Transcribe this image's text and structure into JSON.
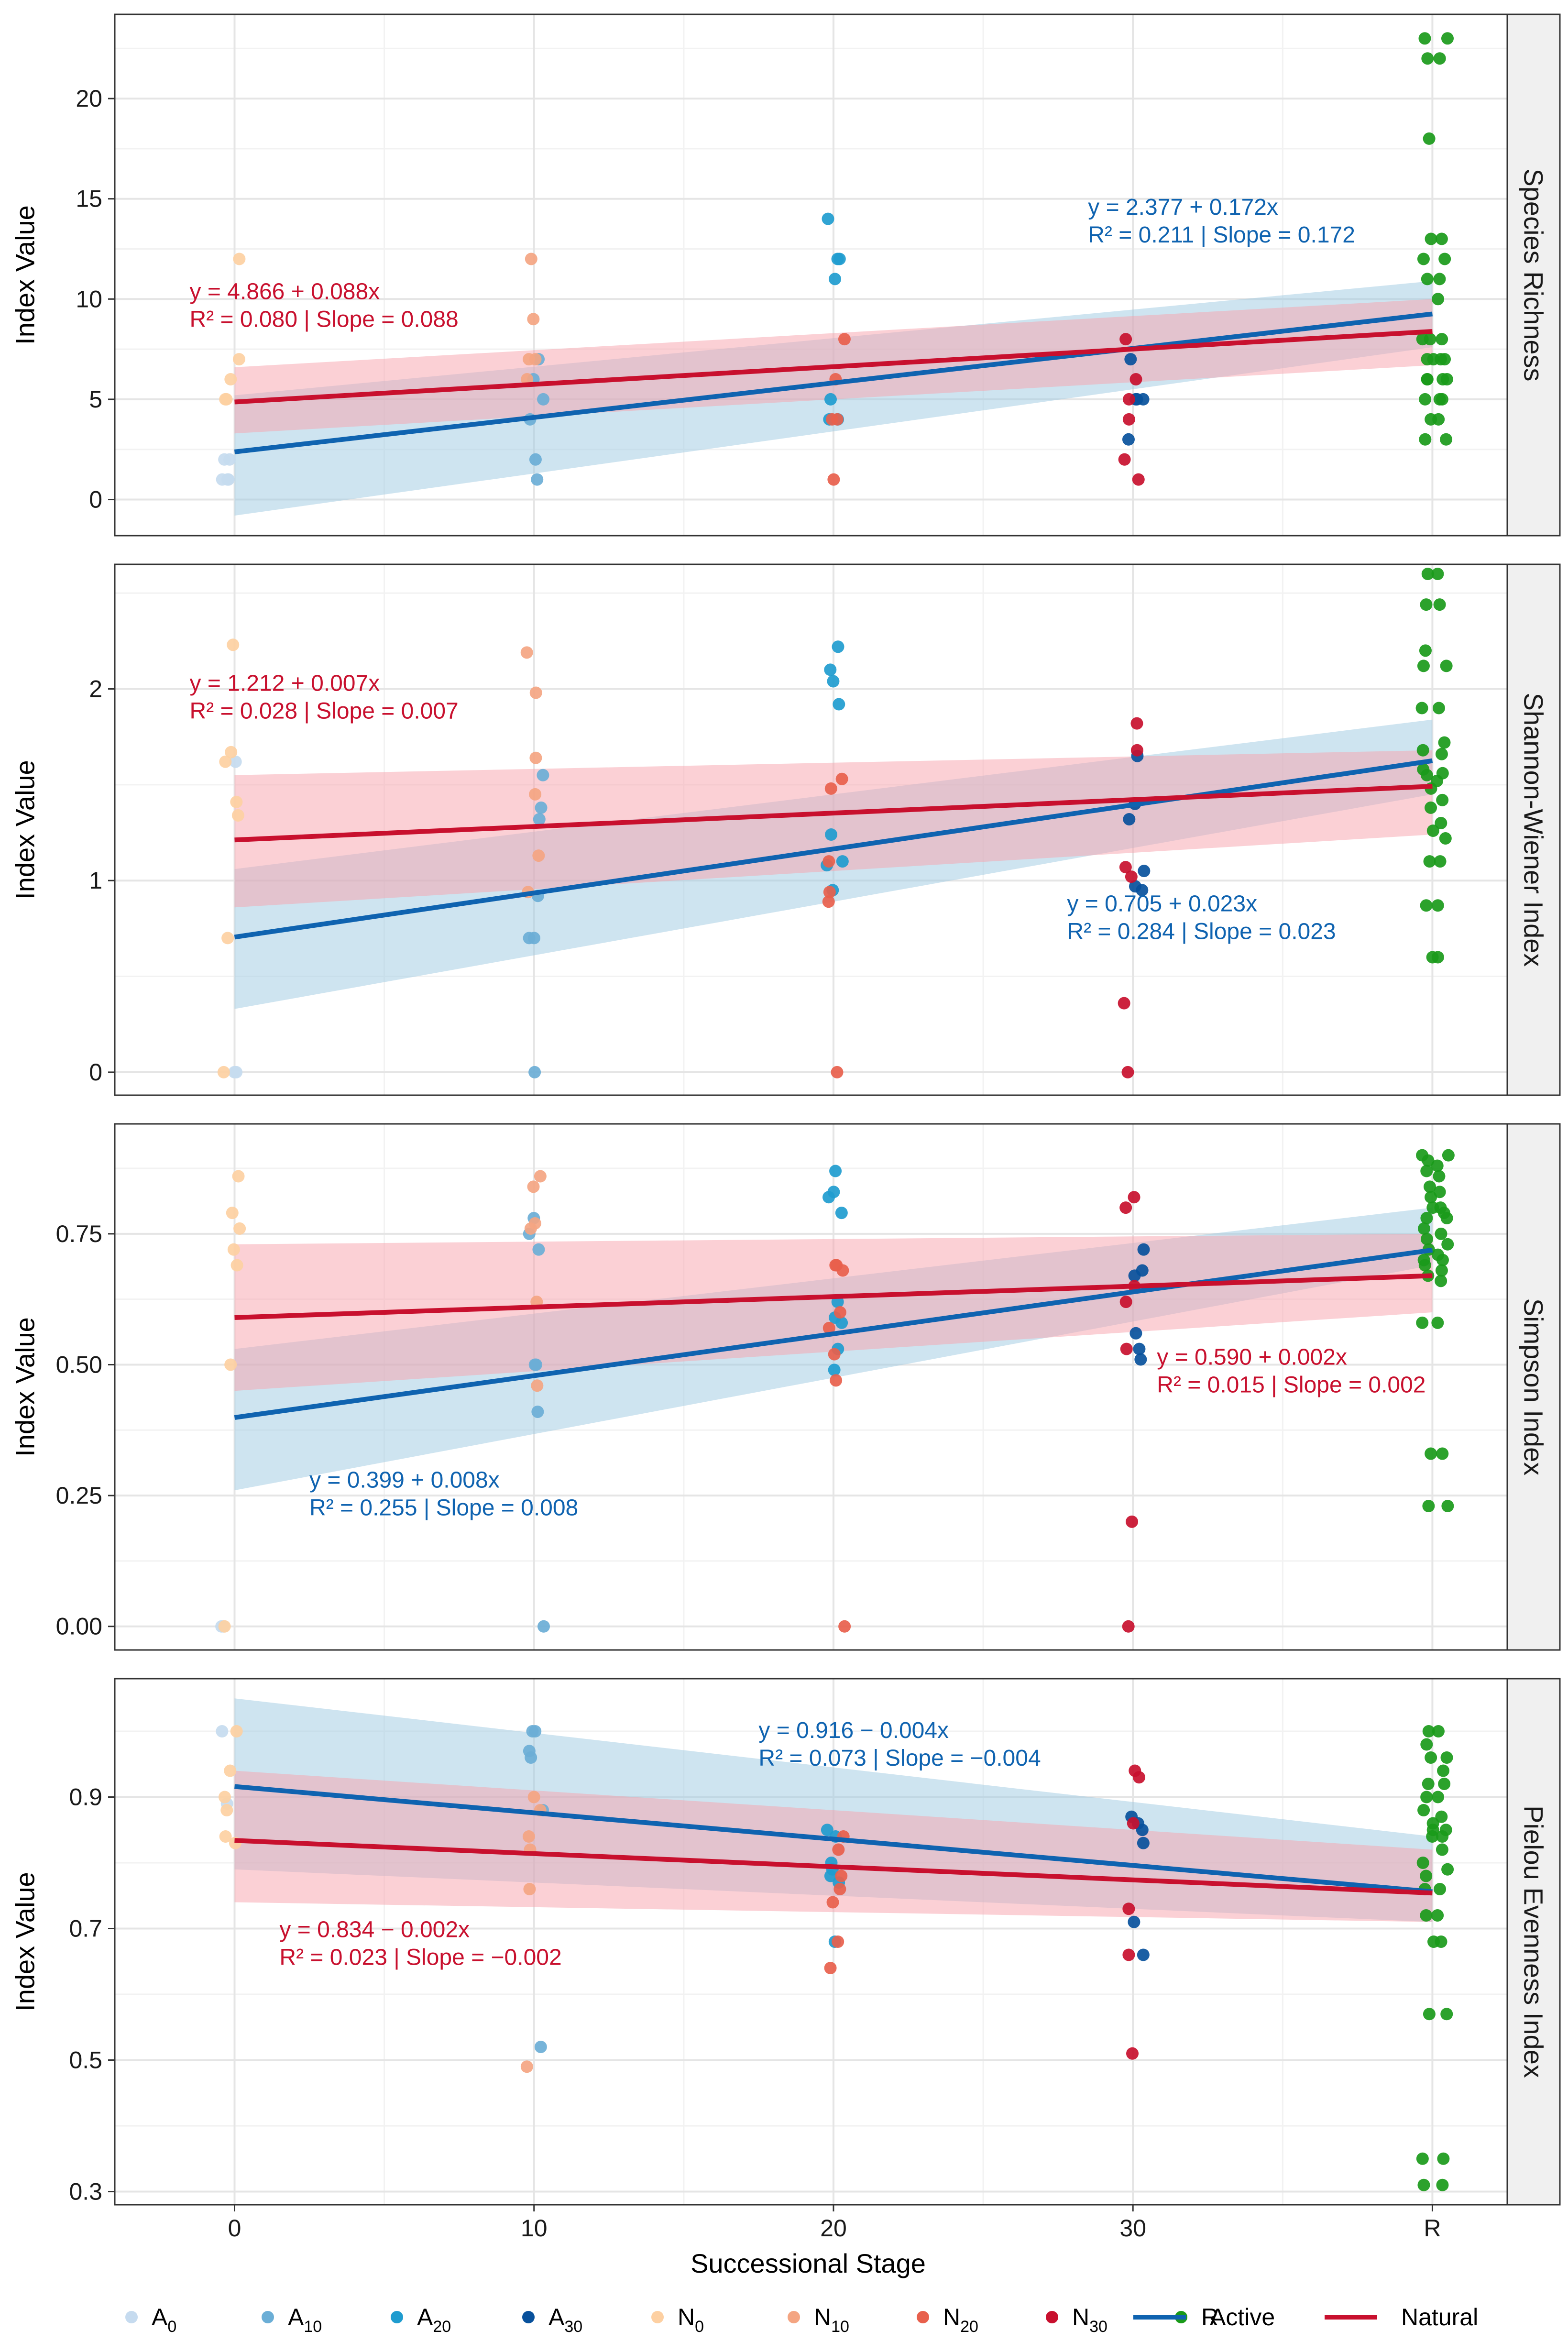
{
  "chart_data": {
    "type": "scatter",
    "xlabel": "Successional Stage",
    "ylabel": "Index Value",
    "x_categories": [
      "0",
      "10",
      "20",
      "30",
      "R"
    ],
    "colors": {
      "A0": "#c6dbef",
      "A10": "#6baed6",
      "A20": "#1f9ccf",
      "A30": "#08519c",
      "N0": "#fdd0a2",
      "N10": "#f4a582",
      "N20": "#e8604c",
      "N30": "#c8102e",
      "R": "#1a9a1a",
      "Active": "#0f63b0",
      "Natural": "#c8102e",
      "active_band": "#9ecae1",
      "natural_band": "#f7a1ab"
    },
    "legend": [
      {
        "key": "A0",
        "base": "A",
        "sub": "0",
        "kind": "point"
      },
      {
        "key": "A10",
        "base": "A",
        "sub": "10",
        "kind": "point"
      },
      {
        "key": "A20",
        "base": "A",
        "sub": "20",
        "kind": "point"
      },
      {
        "key": "A30",
        "base": "A",
        "sub": "30",
        "kind": "point"
      },
      {
        "key": "N0",
        "base": "N",
        "sub": "0",
        "kind": "point"
      },
      {
        "key": "N10",
        "base": "N",
        "sub": "10",
        "kind": "point"
      },
      {
        "key": "N20",
        "base": "N",
        "sub": "20",
        "kind": "point"
      },
      {
        "key": "N30",
        "base": "N",
        "sub": "30",
        "kind": "point"
      },
      {
        "key": "R",
        "base": "R",
        "sub": "",
        "kind": "point"
      },
      {
        "key": "Active",
        "base": "Active",
        "sub": "",
        "kind": "line"
      },
      {
        "key": "Natural",
        "base": "Natural",
        "sub": "",
        "kind": "line"
      }
    ],
    "panels": [
      {
        "name": "Species Richness",
        "ylim": [
          -1.8,
          24.2
        ],
        "yticks": [
          0,
          5,
          10,
          15,
          20
        ],
        "yticklabels": [
          "0",
          "5",
          "10",
          "15",
          "20"
        ],
        "active": {
          "intercept": 2.377,
          "slope": 0.172,
          "ci_start": [
            -0.8,
            5.2
          ],
          "ci_end": [
            7.6,
            10.9
          ],
          "eq": "y = 2.377 + 0.172x",
          "stats": "R² = 0.211 | Slope = 0.172",
          "label_pos": [
            28.5,
            14.2
          ]
        },
        "natural": {
          "intercept": 4.866,
          "slope": 0.088,
          "ci_start": [
            3.3,
            6.6
          ],
          "ci_end": [
            6.7,
            10.0
          ],
          "eq": "y = 4.866 + 0.088x",
          "stats": "R² = 0.080 | Slope = 0.088",
          "label_pos": [
            -1.5,
            10.0
          ]
        },
        "points": {
          "A0": [
            1,
            2,
            1,
            2,
            1
          ],
          "A10": [
            1,
            4,
            5,
            7,
            2,
            6
          ],
          "A20": [
            12,
            12,
            14,
            11,
            5,
            4,
            4
          ],
          "A30": [
            5,
            5,
            7,
            3,
            5
          ],
          "N0": [
            12,
            5,
            6,
            7,
            5
          ],
          "N10": [
            12,
            9,
            7,
            7,
            6
          ],
          "N20": [
            8,
            6,
            4,
            4,
            1
          ],
          "N30": [
            8,
            6,
            5,
            4,
            2,
            1
          ],
          "R": [
            23,
            23,
            22,
            22,
            18,
            13,
            13,
            12,
            12,
            11,
            11,
            10,
            8,
            8,
            8,
            7,
            7,
            7,
            7,
            6,
            6,
            6,
            6,
            5,
            5,
            5,
            4,
            4,
            3,
            3
          ]
        }
      },
      {
        "name": "Shannon-Wiener Index",
        "ylim": [
          -0.12,
          2.65
        ],
        "yticks": [
          0,
          1,
          2
        ],
        "yticklabels": [
          "0",
          "1",
          "2"
        ],
        "active": {
          "intercept": 0.705,
          "slope": 0.023,
          "ci_start": [
            0.33,
            1.06
          ],
          "ci_end": [
            1.45,
            1.84
          ],
          "eq": "y = 0.705 + 0.023x",
          "stats": "R² = 0.284 | Slope = 0.023",
          "label_pos": [
            27.8,
            0.84
          ]
        },
        "natural": {
          "intercept": 1.212,
          "slope": 0.007,
          "ci_start": [
            0.86,
            1.55
          ],
          "ci_end": [
            1.24,
            1.68
          ],
          "eq": "y = 1.212 + 0.007x",
          "stats": "R² = 0.028 | Slope = 0.007",
          "label_pos": [
            -1.5,
            1.99
          ]
        },
        "points": {
          "A0": [
            0,
            0,
            1.62
          ],
          "A10": [
            1.55,
            1.38,
            1.32,
            0.92,
            0.7,
            0.7,
            0
          ],
          "A20": [
            2.1,
            2.04,
            2.22,
            1.92,
            1.24,
            1.1,
            1.08,
            0.95
          ],
          "A30": [
            1.65,
            1.4,
            1.32,
            1.05,
            0.97,
            0.95
          ],
          "N0": [
            2.23,
            1.67,
            1.62,
            1.41,
            1.34,
            0.7,
            0
          ],
          "N10": [
            2.19,
            1.98,
            1.64,
            1.45,
            1.13,
            0.94
          ],
          "N20": [
            1.53,
            1.48,
            1.1,
            0.94,
            0.89,
            0
          ],
          "N30": [
            1.82,
            1.68,
            1.07,
            1.02,
            0.36,
            0
          ],
          "R": [
            2.6,
            2.6,
            2.44,
            2.44,
            2.2,
            2.12,
            2.12,
            1.9,
            1.9,
            1.72,
            1.68,
            1.66,
            1.58,
            1.56,
            1.55,
            1.52,
            1.48,
            1.42,
            1.38,
            1.3,
            1.26,
            1.22,
            1.1,
            1.1,
            0.87,
            0.87,
            0.6,
            0.6
          ]
        }
      },
      {
        "name": "Simpson Index",
        "ylim": [
          -0.045,
          0.96
        ],
        "yticks": [
          0,
          0.25,
          0.5,
          0.75
        ],
        "yticklabels": [
          "0.00",
          "0.25",
          "0.50",
          "0.75"
        ],
        "active": {
          "intercept": 0.399,
          "slope": 0.008,
          "ci_start": [
            0.26,
            0.53
          ],
          "ci_end": [
            0.69,
            0.8
          ],
          "eq": "y = 0.399 + 0.008x",
          "stats": "R² = 0.255 | Slope = 0.008",
          "label_pos": [
            2.5,
            0.265
          ]
        },
        "natural": {
          "intercept": 0.59,
          "slope": 0.002,
          "ci_start": [
            0.45,
            0.73
          ],
          "ci_end": [
            0.6,
            0.75
          ],
          "eq": "y = 0.590 + 0.002x",
          "stats": "R² = 0.015 | Slope = 0.002",
          "label_pos": [
            30.8,
            0.5
          ]
        },
        "points": {
          "A0": [
            0,
            0
          ],
          "A10": [
            0.78,
            0.75,
            0.72,
            0.5,
            0.5,
            0.41,
            0
          ],
          "A20": [
            0.87,
            0.83,
            0.82,
            0.79,
            0.62,
            0.59,
            0.58,
            0.53,
            0.49
          ],
          "A30": [
            0.72,
            0.68,
            0.67,
            0.56,
            0.53,
            0.51
          ],
          "N0": [
            0.86,
            0.79,
            0.76,
            0.72,
            0.69,
            0.5,
            0
          ],
          "N10": [
            0.86,
            0.84,
            0.77,
            0.76,
            0.62,
            0.46
          ],
          "N20": [
            0.69,
            0.69,
            0.68,
            0.6,
            0.57,
            0.52,
            0.47,
            0
          ],
          "N30": [
            0.82,
            0.8,
            0.65,
            0.62,
            0.53,
            0.2,
            0
          ],
          "R": [
            0.9,
            0.9,
            0.89,
            0.88,
            0.87,
            0.86,
            0.84,
            0.83,
            0.82,
            0.8,
            0.8,
            0.79,
            0.78,
            0.78,
            0.76,
            0.75,
            0.74,
            0.73,
            0.72,
            0.71,
            0.7,
            0.7,
            0.69,
            0.68,
            0.67,
            0.66,
            0.58,
            0.58,
            0.33,
            0.33,
            0.23,
            0.23
          ]
        }
      },
      {
        "name": "Pielou Evenness Index",
        "ylim": [
          0.28,
          1.08
        ],
        "yticks": [
          0.3,
          0.5,
          0.7,
          0.9
        ],
        "yticklabels": [
          "0.3",
          "0.5",
          "0.7",
          "0.9"
        ],
        "active": {
          "intercept": 0.916,
          "slope": -0.004,
          "ci_start": [
            0.79,
            1.05
          ],
          "ci_end": [
            0.71,
            0.84
          ],
          "eq": "y = 0.916 − 0.004x",
          "stats": "R² = 0.073 | Slope = −0.004",
          "label_pos": [
            17.5,
            0.99
          ]
        },
        "natural": {
          "intercept": 0.834,
          "slope": -0.002,
          "ci_start": [
            0.74,
            0.94
          ],
          "ci_end": [
            0.71,
            0.82
          ],
          "eq": "y = 0.834 − 0.002x",
          "stats": "R² = 0.023 | Slope = −0.002",
          "label_pos": [
            1.5,
            0.687
          ]
        },
        "points": {
          "A0": [
            1.0,
            0.89
          ],
          "A10": [
            1.0,
            1.0,
            0.97,
            0.96,
            0.52,
            0.88
          ],
          "A20": [
            0.85,
            0.84,
            0.8,
            0.79,
            0.78,
            0.77,
            0.68
          ],
          "A30": [
            0.87,
            0.86,
            0.85,
            0.83,
            0.71,
            0.66
          ],
          "N0": [
            1.0,
            0.94,
            0.9,
            0.88,
            0.84,
            0.83
          ],
          "N10": [
            0.9,
            0.88,
            0.84,
            0.82,
            0.76,
            0.49
          ],
          "N20": [
            0.84,
            0.82,
            0.78,
            0.76,
            0.74,
            0.68,
            0.64
          ],
          "N30": [
            0.94,
            0.93,
            0.86,
            0.73,
            0.66,
            0.51
          ],
          "R": [
            1.0,
            1.0,
            0.98,
            0.96,
            0.96,
            0.94,
            0.92,
            0.92,
            0.9,
            0.9,
            0.88,
            0.87,
            0.86,
            0.85,
            0.85,
            0.84,
            0.84,
            0.82,
            0.8,
            0.79,
            0.78,
            0.76,
            0.76,
            0.72,
            0.72,
            0.68,
            0.68,
            0.57,
            0.57,
            0.35,
            0.35,
            0.31,
            0.31
          ]
        }
      }
    ]
  }
}
